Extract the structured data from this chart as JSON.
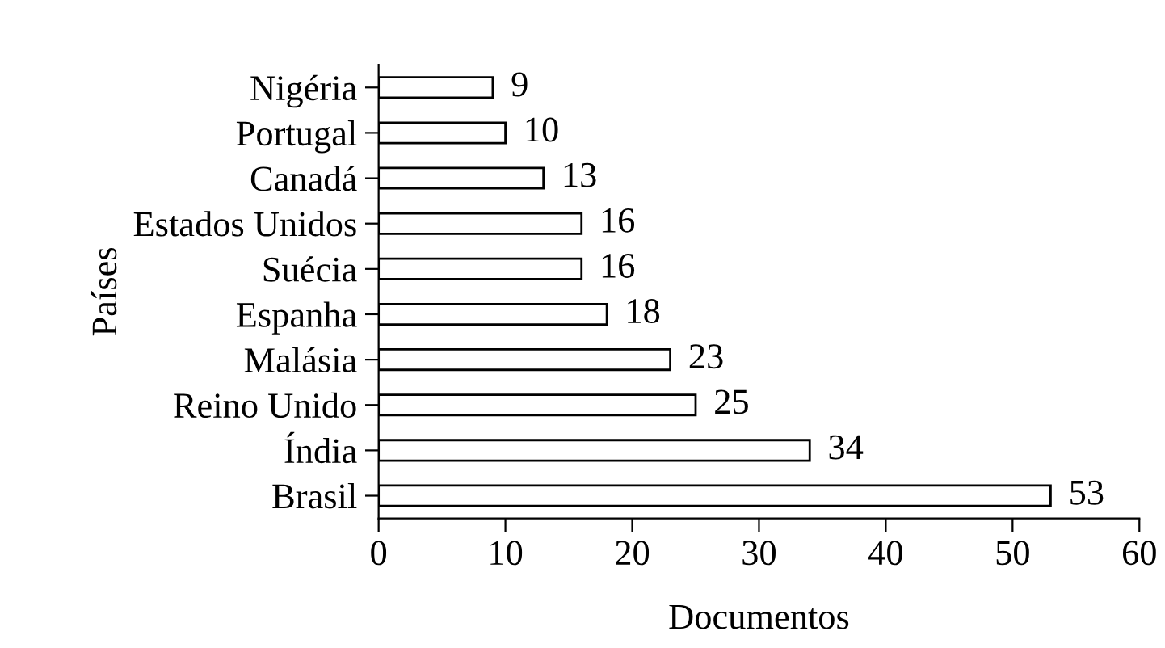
{
  "chart_data": {
    "type": "bar",
    "orientation": "horizontal",
    "xlabel": "Documentos",
    "ylabel": "Países",
    "categories": [
      "Nigéria",
      "Portugal",
      "Canadá",
      "Estados Unidos",
      "Suécia",
      "Espanha",
      "Malásia",
      "Reino Unido",
      "Índia",
      "Brasil"
    ],
    "series": [
      {
        "color": "#ffffff",
        "values": [
          9,
          10,
          13,
          16,
          16,
          18,
          23,
          25,
          34,
          53
        ]
      }
    ],
    "xlim": [
      0,
      60
    ],
    "xticks": [
      0,
      10,
      20,
      30,
      40,
      50,
      60
    ],
    "data_labels": true,
    "grid": false,
    "legend": false
  }
}
